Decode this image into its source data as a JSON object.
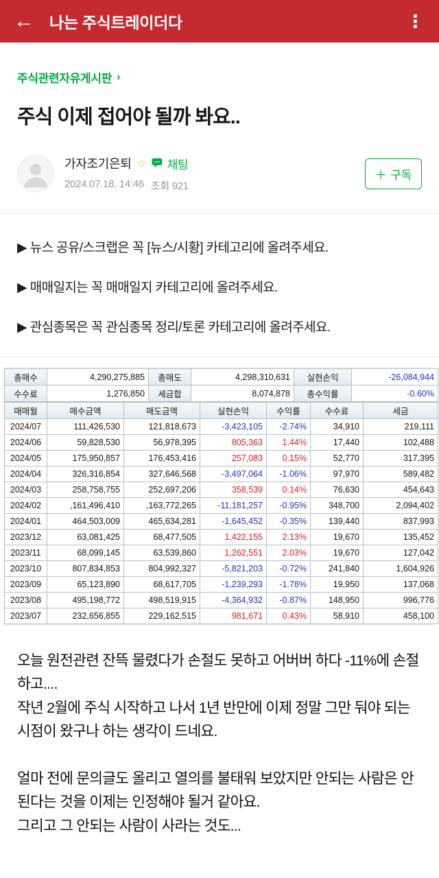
{
  "app_bar": {
    "back_icon": "←",
    "title": "나는 주식트레이더다",
    "more_icon": "⋮"
  },
  "breadcrumb": {
    "label": "주식관련자유게시판",
    "chevron": "›"
  },
  "post": {
    "title": "주식 이제 접어야 될까 봐요..",
    "author": "가자조기은퇴",
    "star": "☆",
    "chat_label": "채팅",
    "date": "2024.07.18. 14:46",
    "views": "조회 921",
    "subscribe_icon": "＋",
    "subscribe_label": "구독"
  },
  "notices": [
    "▶ 뉴스 공유/스크랩은 꼭 [뉴스/시황] 카테고리에 올려주세요.",
    "▶ 매매일지는 꼭 매매일지 카테고리에 올려주세요.",
    "▶ 관심종목은 꼭 관심종목 정리/토론 카테고리에 올려주세요."
  ],
  "colors": {
    "app_bar_red": "#c52a30",
    "accent_green": "#00ac3c",
    "negative_blue": "#2732c8",
    "positive_red": "#e8191f"
  },
  "table": {
    "summary": [
      [
        {
          "kind": "label",
          "text": "총매수"
        },
        {
          "kind": "value",
          "text": "4,290,275,885"
        },
        {
          "kind": "label",
          "text": "총매도"
        },
        {
          "kind": "value",
          "text": "4,298,310,631"
        },
        {
          "kind": "label",
          "text": "실현손익"
        },
        {
          "kind": "value",
          "text": "-26,084,944",
          "color": "neg"
        }
      ],
      [
        {
          "kind": "label",
          "text": "수수료"
        },
        {
          "kind": "value",
          "text": "1,276,850"
        },
        {
          "kind": "label",
          "text": "세금합"
        },
        {
          "kind": "value",
          "text": "8,074,878"
        },
        {
          "kind": "label",
          "text": "총수익률"
        },
        {
          "kind": "value",
          "text": "-0.60%",
          "color": "neg"
        }
      ]
    ],
    "columns": [
      "매매월",
      "매수금액",
      "매도금액",
      "실현손익",
      "수익률",
      "수수료",
      "세금"
    ],
    "rows": [
      [
        "2024/07",
        "111,426,530",
        "121,818,673",
        "-3,423,105",
        "-2.74%",
        "34,910",
        "219,111"
      ],
      [
        "2024/06",
        "59,828,530",
        "56,978,395",
        "805,363",
        "1.44%",
        "17,440",
        "102,488"
      ],
      [
        "2024/05",
        "175,950,857",
        "176,453,416",
        "257,083",
        "0.15%",
        "52,770",
        "317,395"
      ],
      [
        "2024/04",
        "326,316,854",
        "327,646,568",
        "-3,497,064",
        "-1.06%",
        "97,970",
        "589,482"
      ],
      [
        "2024/03",
        "258,758,755",
        "252,697,206",
        "358,539",
        "0.14%",
        "76,630",
        "454,643"
      ],
      [
        "2024/02",
        ",161,496,410",
        ",163,772,265",
        "-11,181,257",
        "-0.95%",
        "348,700",
        "2,094,402"
      ],
      [
        "2024/01",
        "464,503,009",
        "465,634,281",
        "-1,645,452",
        "-0.35%",
        "139,440",
        "837,993"
      ],
      [
        "2023/12",
        "63,081,425",
        "68,477,505",
        "1,422,155",
        "2.13%",
        "19,670",
        "135,452"
      ],
      [
        "2023/11",
        "68,099,145",
        "63,539,860",
        "1,262,551",
        "2.03%",
        "19,670",
        "127,042"
      ],
      [
        "2023/10",
        "807,834,853",
        "804,992,327",
        "-5,821,203",
        "-0.72%",
        "241,840",
        "1,604,926"
      ],
      [
        "2023/09",
        "65,123,890",
        "68,617,705",
        "-1,239,293",
        "-1.78%",
        "19,950",
        "137,068"
      ],
      [
        "2023/08",
        "495,198,772",
        "498,519,915",
        "-4,364,932",
        "-0.87%",
        "148,950",
        "996,776"
      ],
      [
        "2023/07",
        "232,656,855",
        "229,162,515",
        "981,671",
        "0.43%",
        "58,910",
        "458,100"
      ]
    ]
  },
  "body_paragraphs": [
    "오늘 원전관련 잔뜩 물렸다가 손절도 못하고 어버버 하다 -11%에 손절하고....",
    "작년 2월에 주식 시작하고 나서 1년 반만에 이제 정말 그만 둬야 되는 시점이 왔구나 하는 생각이 드네요.",
    "",
    "얼마 전에 문의글도 올리고 열의를 불태워 보았지만 안되는 사람은 안된다는 것을 이제는 인정해야 될거 같아요.",
    "그리고 그 안되는 사람이 사라는 것도..."
  ]
}
